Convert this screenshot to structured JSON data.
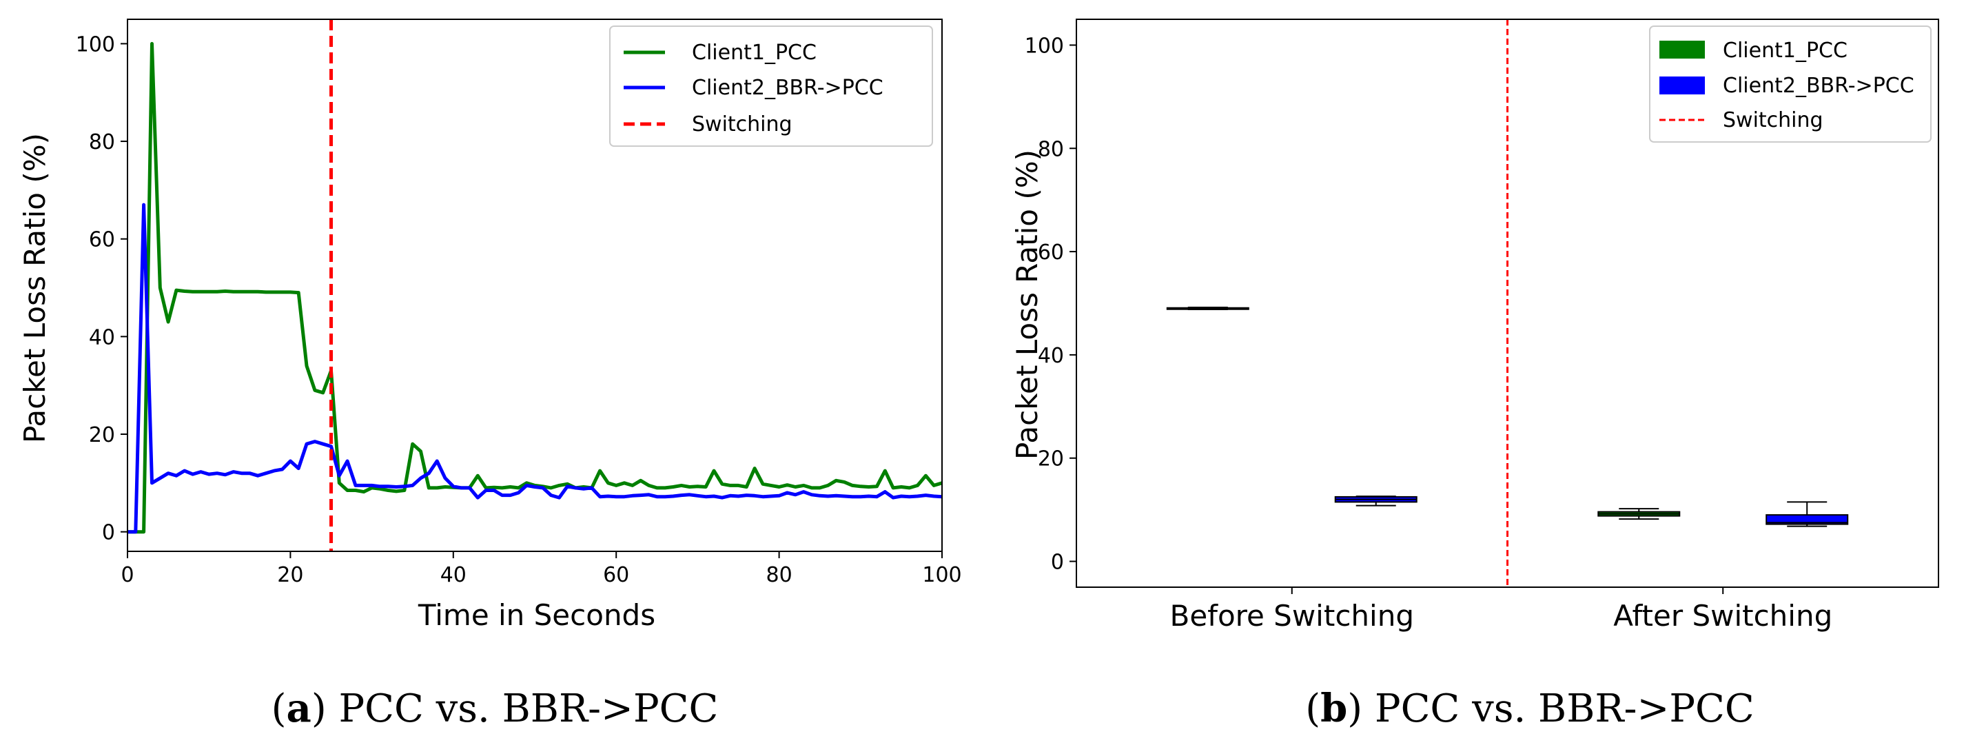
{
  "chart_data": [
    {
      "id": "a",
      "type": "line",
      "caption_letter": "a",
      "caption_text": "PCC vs. BBR->PCC",
      "xlabel": "Time in Seconds",
      "ylabel": "Packet Loss Ratio (%)",
      "xlim": [
        0,
        100
      ],
      "ylim": [
        -4,
        105
      ],
      "xticks": [
        0,
        20,
        40,
        60,
        80,
        100
      ],
      "yticks": [
        0,
        20,
        40,
        60,
        80,
        100
      ],
      "grid": false,
      "legend_position": "top-right",
      "switching_x": 25,
      "series": [
        {
          "name": "Client1_PCC",
          "color": "#008000",
          "x": [
            0,
            1,
            2,
            3,
            4,
            5,
            6,
            7,
            8,
            9,
            10,
            11,
            12,
            13,
            14,
            15,
            16,
            17,
            18,
            19,
            20,
            21,
            22,
            23,
            24,
            25,
            26,
            27,
            28,
            29,
            30,
            31,
            32,
            33,
            34,
            35,
            36,
            37,
            38,
            39,
            40,
            41,
            42,
            43,
            44,
            45,
            46,
            47,
            48,
            49,
            50,
            51,
            52,
            53,
            54,
            55,
            56,
            57,
            58,
            59,
            60,
            61,
            62,
            63,
            64,
            65,
            66,
            67,
            68,
            69,
            70,
            71,
            72,
            73,
            74,
            75,
            76,
            77,
            78,
            79,
            80,
            81,
            82,
            83,
            84,
            85,
            86,
            87,
            88,
            89,
            90,
            91,
            92,
            93,
            94,
            95,
            96,
            97,
            98,
            99,
            100
          ],
          "y": [
            0,
            0,
            0,
            100,
            50,
            43,
            49.5,
            49.3,
            49.2,
            49.2,
            49.2,
            49.2,
            49.3,
            49.2,
            49.2,
            49.2,
            49.2,
            49.1,
            49.1,
            49.1,
            49.1,
            49,
            34,
            29,
            28.5,
            33,
            10,
            8.5,
            8.5,
            8.2,
            9,
            8.8,
            8.5,
            8.3,
            8.5,
            18,
            16.5,
            9,
            9,
            9.2,
            9.1,
            9,
            9,
            11.5,
            9,
            9.1,
            9,
            9.2,
            9,
            10,
            9.5,
            9.3,
            9,
            9.5,
            9.8,
            9,
            9.2,
            9,
            12.5,
            10,
            9.5,
            10,
            9.5,
            10.5,
            9.5,
            9,
            9,
            9.2,
            9.5,
            9.2,
            9.3,
            9.2,
            12.5,
            9.8,
            9.5,
            9.5,
            9.2,
            13,
            9.8,
            9.5,
            9.2,
            9.6,
            9.2,
            9.5,
            9,
            9,
            9.5,
            10.5,
            10.2,
            9.5,
            9.3,
            9.2,
            9.3,
            12.5,
            9,
            9.2,
            9,
            9.5,
            11.5,
            9.5,
            10
          ]
        },
        {
          "name": "Client2_BBR->PCC",
          "color": "#0000ff",
          "x": [
            0,
            1,
            2,
            3,
            4,
            5,
            6,
            7,
            8,
            9,
            10,
            11,
            12,
            13,
            14,
            15,
            16,
            17,
            18,
            19,
            20,
            21,
            22,
            23,
            24,
            25,
            26,
            27,
            28,
            29,
            30,
            31,
            32,
            33,
            34,
            35,
            36,
            37,
            38,
            39,
            40,
            41,
            42,
            43,
            44,
            45,
            46,
            47,
            48,
            49,
            50,
            51,
            52,
            53,
            54,
            55,
            56,
            57,
            58,
            59,
            60,
            61,
            62,
            63,
            64,
            65,
            66,
            67,
            68,
            69,
            70,
            71,
            72,
            73,
            74,
            75,
            76,
            77,
            78,
            79,
            80,
            81,
            82,
            83,
            84,
            85,
            86,
            87,
            88,
            89,
            90,
            91,
            92,
            93,
            94,
            95,
            96,
            97,
            98,
            99,
            100
          ],
          "y": [
            0,
            0,
            67,
            10,
            11,
            12,
            11.5,
            12.5,
            11.8,
            12.3,
            11.8,
            12,
            11.7,
            12.3,
            12,
            12,
            11.5,
            12,
            12.5,
            12.8,
            14.5,
            13,
            18,
            18.5,
            18,
            17.5,
            11.5,
            14.5,
            9.5,
            9.5,
            9.5,
            9.3,
            9.3,
            9.2,
            9.3,
            9.5,
            11,
            12,
            14.5,
            11,
            9.3,
            9,
            9,
            7,
            8.5,
            8.5,
            7.5,
            7.5,
            8,
            9.5,
            9.2,
            9,
            7.5,
            7,
            9.3,
            9,
            8.8,
            9,
            7.2,
            7.3,
            7.2,
            7.2,
            7.4,
            7.5,
            7.6,
            7.2,
            7.2,
            7.3,
            7.5,
            7.6,
            7.4,
            7.2,
            7.3,
            7,
            7.4,
            7.3,
            7.5,
            7.4,
            7.2,
            7.3,
            7.4,
            8,
            7.6,
            8.2,
            7.6,
            7.4,
            7.3,
            7.4,
            7.3,
            7.2,
            7.2,
            7.3,
            7.2,
            8.2,
            7,
            7.3,
            7.2,
            7.3,
            7.5,
            7.3,
            7.2
          ]
        }
      ],
      "switching_color": "#ff0000",
      "legend": [
        "Client1_PCC",
        "Client2_BBR->PCC",
        "Switching"
      ]
    },
    {
      "id": "b",
      "type": "box",
      "caption_letter": "b",
      "caption_text": "PCC vs. BBR->PCC",
      "ylabel": "Packet Loss Ratio (%)",
      "categories": [
        "Before Switching",
        "After Switching"
      ],
      "ylim": [
        -5,
        105
      ],
      "yticks": [
        0,
        20,
        40,
        60,
        80,
        100
      ],
      "grid": false,
      "legend_position": "top-right",
      "switching_color": "#ff0000",
      "legend": [
        "Client1_PCC",
        "Client2_BBR->PCC",
        "Switching"
      ],
      "boxes": [
        {
          "category": "Before Switching",
          "series": "Client1_PCC",
          "color": "#008000",
          "whisker_low": 48.8,
          "q1": 48.9,
          "median": 49.0,
          "q3": 49.1,
          "whisker_high": 49.2
        },
        {
          "category": "Before Switching",
          "series": "Client2_BBR->PCC",
          "color": "#0000ff",
          "whisker_low": 10.8,
          "q1": 11.5,
          "median": 12.0,
          "q3": 12.5,
          "whisker_high": 12.6
        },
        {
          "category": "After Switching",
          "series": "Client1_PCC",
          "color": "#008000",
          "whisker_low": 8.2,
          "q1": 8.8,
          "median": 9.2,
          "q3": 9.6,
          "whisker_high": 10.2
        },
        {
          "category": "After Switching",
          "series": "Client2_BBR->PCC",
          "color": "#0000ff",
          "whisker_low": 6.8,
          "q1": 7.2,
          "median": 7.5,
          "q3": 9.0,
          "whisker_high": 11.5
        }
      ]
    }
  ]
}
